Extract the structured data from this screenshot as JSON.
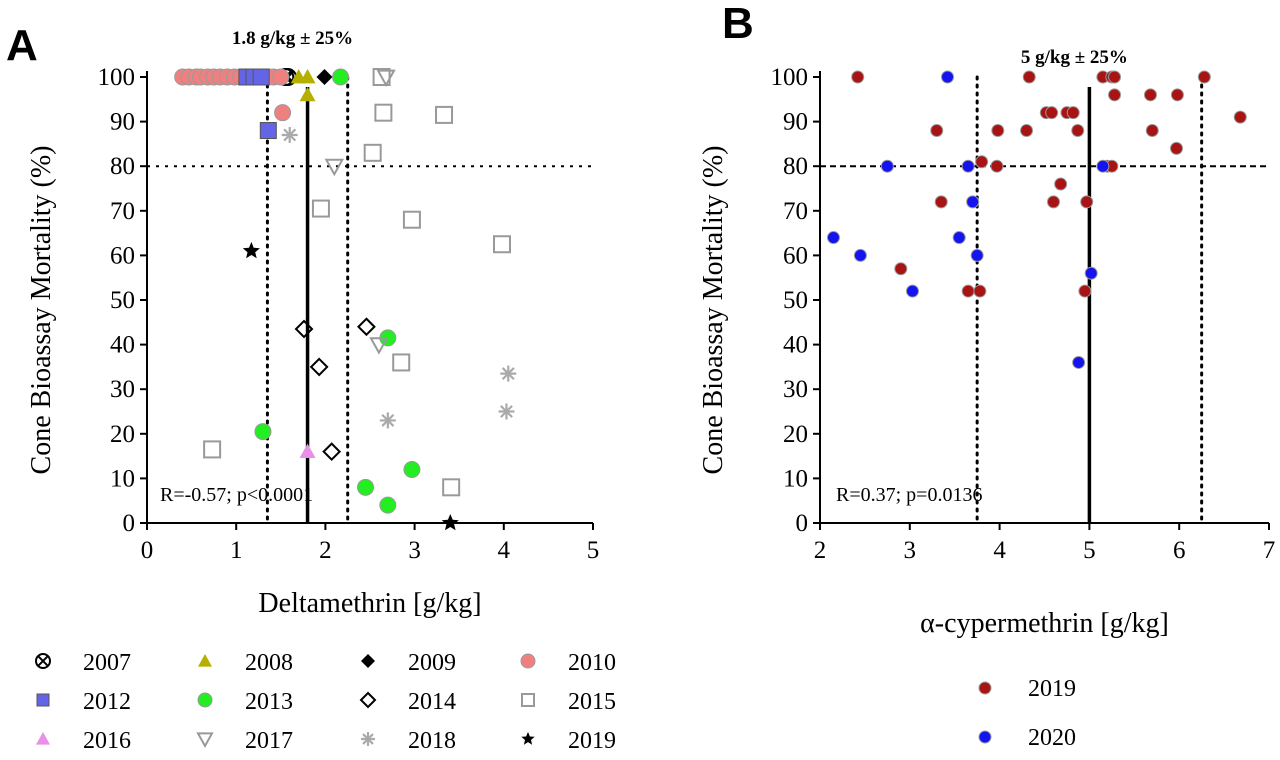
{
  "chart_data": [
    {
      "panel": "A",
      "type": "scatter",
      "title": "",
      "xlabel": "Deltamethrin [g/kg]",
      "ylabel": "Cone Bioassay Mortality (%)",
      "xlim": [
        0,
        5
      ],
      "ylim": [
        0,
        100
      ],
      "xticks": [
        0,
        1,
        2,
        3,
        4,
        5
      ],
      "yticks": [
        0,
        10,
        20,
        30,
        40,
        50,
        60,
        70,
        80,
        90,
        100
      ],
      "grid": false,
      "target_label": "1.8 g/kg ± 25%",
      "target_value": 1.8,
      "target_range": [
        1.35,
        2.25
      ],
      "threshold_mortality": 80,
      "stats_annotation": "R=-0.57; p<0.0001",
      "legend_position": "below",
      "series": [
        {
          "name": "2007",
          "marker": "circle-x",
          "color": "#000000",
          "points": [
            [
              1.58,
              100
            ],
            [
              1.55,
              100
            ]
          ]
        },
        {
          "name": "2008",
          "marker": "triangle",
          "color": "#b5b000",
          "points": [
            [
              1.8,
              100
            ],
            [
              1.7,
              100
            ],
            [
              1.8,
              96
            ]
          ]
        },
        {
          "name": "2009",
          "marker": "diamond",
          "color": "#000000",
          "points": [
            [
              1.99,
              100
            ]
          ]
        },
        {
          "name": "2010",
          "marker": "circle",
          "color": "#f08080",
          "points": [
            [
              0.4,
              100
            ],
            [
              0.47,
              100
            ],
            [
              0.55,
              100
            ],
            [
              0.6,
              100
            ],
            [
              0.68,
              100
            ],
            [
              0.75,
              100
            ],
            [
              0.82,
              100
            ],
            [
              0.9,
              100
            ],
            [
              0.98,
              100
            ],
            [
              1.05,
              100
            ],
            [
              1.12,
              100
            ],
            [
              1.2,
              100
            ],
            [
              1.28,
              100
            ],
            [
              1.36,
              100
            ],
            [
              1.42,
              100
            ],
            [
              1.5,
              100
            ],
            [
              1.52,
              92
            ]
          ]
        },
        {
          "name": "2012",
          "marker": "square",
          "color": "#6464e6",
          "points": [
            [
              1.12,
              100
            ],
            [
              1.2,
              100
            ],
            [
              1.28,
              100
            ],
            [
              1.36,
              88
            ]
          ]
        },
        {
          "name": "2013",
          "marker": "circle",
          "color": "#22ee22",
          "points": [
            [
              2.17,
              100
            ],
            [
              2.7,
              41.5
            ],
            [
              1.3,
              20.5
            ],
            [
              2.97,
              12
            ],
            [
              2.45,
              8
            ],
            [
              2.7,
              4
            ]
          ]
        },
        {
          "name": "2014",
          "marker": "diamond-open",
          "color": "#000000",
          "points": [
            [
              1.76,
              43.5
            ],
            [
              2.46,
              44
            ],
            [
              1.93,
              35
            ],
            [
              2.07,
              16
            ]
          ]
        },
        {
          "name": "2015",
          "marker": "square-open",
          "color": "#999999",
          "points": [
            [
              2.63,
              100
            ],
            [
              2.65,
              92
            ],
            [
              3.33,
              91.5
            ],
            [
              2.53,
              83
            ],
            [
              1.95,
              70.5
            ],
            [
              2.97,
              68
            ],
            [
              3.98,
              62.5
            ],
            [
              2.85,
              36
            ],
            [
              0.73,
              16.5
            ],
            [
              3.41,
              8
            ]
          ]
        },
        {
          "name": "2016",
          "marker": "triangle",
          "color": "#e890e8",
          "points": [
            [
              1.8,
              16
            ]
          ]
        },
        {
          "name": "2017",
          "marker": "triangle-down-open",
          "color": "#999999",
          "points": [
            [
              2.68,
              100
            ],
            [
              2.1,
              80
            ],
            [
              2.6,
              40
            ]
          ]
        },
        {
          "name": "2018",
          "marker": "asterisk",
          "color": "#aaaaaa",
          "points": [
            [
              1.6,
              87
            ],
            [
              4.05,
              33.5
            ],
            [
              4.03,
              25
            ],
            [
              2.7,
              23
            ]
          ]
        },
        {
          "name": "2019",
          "marker": "star",
          "color": "#000000",
          "points": [
            [
              1.17,
              61
            ],
            [
              3.4,
              0
            ]
          ]
        }
      ]
    },
    {
      "panel": "B",
      "type": "scatter",
      "title": "",
      "xlabel": "α-cypermethrin [g/kg]",
      "ylabel": "Cone Bioassay Mortality (%)",
      "xlim": [
        2,
        7
      ],
      "ylim": [
        0,
        100
      ],
      "xticks": [
        2,
        3,
        4,
        5,
        6,
        7
      ],
      "yticks": [
        0,
        10,
        20,
        30,
        40,
        50,
        60,
        70,
        80,
        90,
        100
      ],
      "grid": false,
      "target_label": "5 g/kg ± 25%",
      "target_value": 5,
      "target_range": [
        3.75,
        6.25
      ],
      "threshold_mortality": 80,
      "stats_annotation": "R=0.37; p=0.0136",
      "legend_position": "below",
      "series": [
        {
          "name": "2019",
          "marker": "circle",
          "color": "#a81414",
          "points": [
            [
              2.42,
              100
            ],
            [
              4.33,
              100
            ],
            [
              5.15,
              100
            ],
            [
              5.25,
              100
            ],
            [
              5.28,
              100
            ],
            [
              6.28,
              100
            ],
            [
              4.52,
              92
            ],
            [
              4.58,
              92
            ],
            [
              4.75,
              92
            ],
            [
              4.82,
              92
            ],
            [
              5.28,
              96
            ],
            [
              5.68,
              96
            ],
            [
              5.98,
              96
            ],
            [
              6.68,
              91
            ],
            [
              3.3,
              88
            ],
            [
              3.98,
              88
            ],
            [
              4.3,
              88
            ],
            [
              4.87,
              88
            ],
            [
              5.7,
              88
            ],
            [
              5.97,
              84
            ],
            [
              3.8,
              81
            ],
            [
              3.97,
              80
            ],
            [
              5.2,
              80
            ],
            [
              5.25,
              80
            ],
            [
              4.68,
              76
            ],
            [
              3.35,
              72
            ],
            [
              4.6,
              72
            ],
            [
              4.97,
              72
            ],
            [
              2.9,
              57
            ],
            [
              3.65,
              52
            ],
            [
              3.78,
              52
            ],
            [
              4.95,
              52
            ]
          ]
        },
        {
          "name": "2020",
          "marker": "circle",
          "color": "#1414f0",
          "points": [
            [
              3.42,
              100
            ],
            [
              2.75,
              80
            ],
            [
              3.65,
              80
            ],
            [
              2.15,
              64
            ],
            [
              2.45,
              60
            ],
            [
              3.7,
              72
            ],
            [
              3.55,
              64
            ],
            [
              3.75,
              60
            ],
            [
              3.03,
              52
            ],
            [
              5.02,
              56
            ],
            [
              4.88,
              36
            ],
            [
              5.15,
              80
            ]
          ]
        }
      ]
    }
  ]
}
